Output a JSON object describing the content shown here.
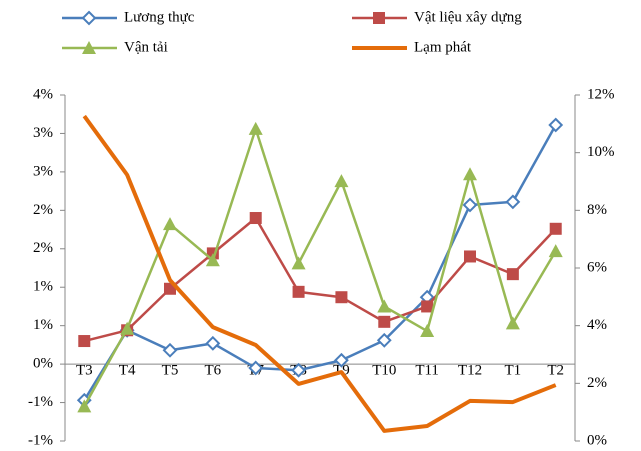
{
  "chart_data": {
    "type": "line",
    "categories": [
      "T3",
      "T4",
      "T5",
      "T6",
      "T7",
      "T8",
      "T9",
      "T10",
      "T11",
      "T12",
      "T1",
      "T2"
    ],
    "series": [
      {
        "name": "Lương thực",
        "color": "#4a7ebb",
        "marker": "diamond",
        "values": [
          -0.47,
          0.44,
          0.18,
          0.27,
          -0.05,
          -0.08,
          0.05,
          0.31,
          0.87,
          2.07,
          2.11,
          3.11
        ]
      },
      {
        "name": "Vật liệu xây dựng",
        "color": "#be4b48",
        "marker": "square",
        "values": [
          0.3,
          0.44,
          0.98,
          1.44,
          1.9,
          0.94,
          0.87,
          0.55,
          0.75,
          1.4,
          1.17,
          1.76
        ]
      },
      {
        "name": "Vận tải",
        "color": "#98b954",
        "marker": "triangle",
        "values": [
          -0.55,
          0.46,
          1.82,
          1.35,
          3.06,
          1.31,
          2.38,
          0.75,
          0.43,
          2.47,
          0.53,
          1.47
        ]
      },
      {
        "name": "Lạm phát",
        "color": "#e46c0a",
        "marker": "none",
        "axis": "y2",
        "values": [
          11.27,
          9.23,
          5.58,
          3.95,
          3.33,
          1.98,
          2.39,
          0.35,
          0.52,
          1.39,
          1.35,
          1.94
        ]
      }
    ],
    "ylim": [
      -1,
      3.5
    ],
    "yticks": [
      {
        "value": -1,
        "label": "-1%"
      },
      {
        "value": -0.5,
        "label": "-1%"
      },
      {
        "value": 0,
        "label": "0%"
      },
      {
        "value": 0.5,
        "label": "1%"
      },
      {
        "value": 1,
        "label": "1%"
      },
      {
        "value": 1.5,
        "label": "2%"
      },
      {
        "value": 2,
        "label": "2%"
      },
      {
        "value": 2.5,
        "label": "3%"
      },
      {
        "value": 3,
        "label": "3%"
      },
      {
        "value": 3.5,
        "label": "4%"
      }
    ],
    "y2lim": [
      0,
      12
    ],
    "y2ticks": [
      {
        "value": 0,
        "label": "0%"
      },
      {
        "value": 2,
        "label": "2%"
      },
      {
        "value": 4,
        "label": "4%"
      },
      {
        "value": 6,
        "label": "6%"
      },
      {
        "value": 8,
        "label": "8%"
      },
      {
        "value": 10,
        "label": "10%"
      },
      {
        "value": 12,
        "label": "12%"
      }
    ],
    "grid": false,
    "legend": "top"
  }
}
